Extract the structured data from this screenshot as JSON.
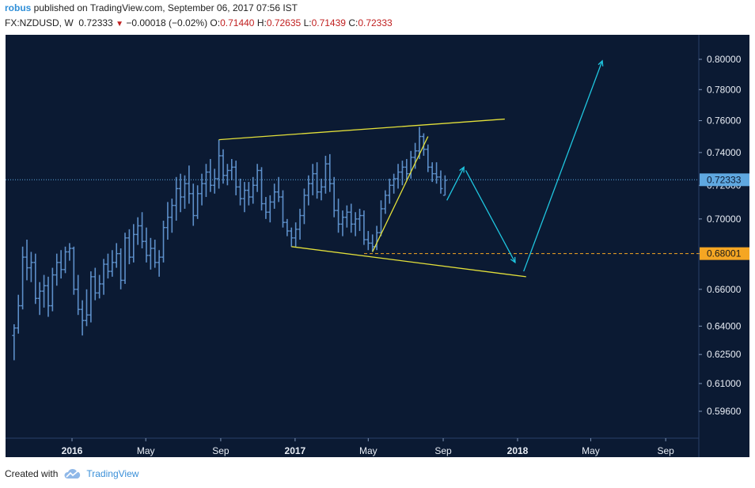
{
  "header": {
    "user": "robus",
    "published": " published on TradingView.com, September 06, 2017 07:56 IST",
    "symbol": "FX:NZDUSD, W",
    "last": "0.72333",
    "change": "−0.00018 (−0.02%)",
    "o_label": "O:",
    "o": "0.71440",
    "h_label": "H:",
    "h": "0.72635",
    "l_label": "L:",
    "l": "0.71439",
    "c_label": "C:",
    "c": "0.72333"
  },
  "footer": {
    "created_with": "Created with",
    "brand": "TradingView"
  },
  "colors": {
    "background": "#0b1a33",
    "panel": "#0c1a32",
    "candle": "#5d8fc9",
    "trendline": "#e3e03a",
    "arrow": "#1fc6e0",
    "price_tag": "#5fa8e0",
    "level_tag": "#f5a623",
    "grid": "#14284a"
  },
  "chart_data": {
    "type": "ohlc",
    "symbol": "FX:NZDUSD",
    "interval": "W",
    "y_axis_ticks": [
      "0.80000",
      "0.78000",
      "0.76000",
      "0.74000",
      "0.72000",
      "0.70000",
      "0.68000",
      "0.66000",
      "0.64000",
      "0.62500",
      "0.61000",
      "0.59600"
    ],
    "x_axis_ticks": [
      {
        "label": "2016",
        "date": "2016-01-01",
        "bold": true
      },
      {
        "label": "May",
        "date": "2016-05-01",
        "bold": false
      },
      {
        "label": "Sep",
        "date": "2016-09-01",
        "bold": false
      },
      {
        "label": "2017",
        "date": "2017-01-01",
        "bold": true
      },
      {
        "label": "May",
        "date": "2017-05-01",
        "bold": false
      },
      {
        "label": "Sep",
        "date": "2017-09-01",
        "bold": false
      },
      {
        "label": "2018",
        "date": "2018-01-01",
        "bold": true
      },
      {
        "label": "May",
        "date": "2018-05-01",
        "bold": false
      },
      {
        "label": "Sep",
        "date": "2018-09-01",
        "bold": false
      }
    ],
    "scale": "log",
    "last_price": "0.72333",
    "level_price": "0.68001",
    "bars": [
      {
        "date": "2015-09-28",
        "o": 0.635,
        "h": 0.641,
        "l": 0.622,
        "c": 0.639
      },
      {
        "date": "2015-10-05",
        "o": 0.639,
        "h": 0.657,
        "l": 0.636,
        "c": 0.651
      },
      {
        "date": "2015-10-12",
        "o": 0.651,
        "h": 0.684,
        "l": 0.649,
        "c": 0.678
      },
      {
        "date": "2015-10-19",
        "o": 0.678,
        "h": 0.688,
        "l": 0.665,
        "c": 0.672
      },
      {
        "date": "2015-10-26",
        "o": 0.672,
        "h": 0.681,
        "l": 0.664,
        "c": 0.675
      },
      {
        "date": "2015-11-02",
        "o": 0.675,
        "h": 0.68,
        "l": 0.652,
        "c": 0.655
      },
      {
        "date": "2015-11-09",
        "o": 0.655,
        "h": 0.664,
        "l": 0.646,
        "c": 0.659
      },
      {
        "date": "2015-11-16",
        "o": 0.659,
        "h": 0.668,
        "l": 0.65,
        "c": 0.662
      },
      {
        "date": "2015-11-23",
        "o": 0.662,
        "h": 0.667,
        "l": 0.645,
        "c": 0.651
      },
      {
        "date": "2015-11-30",
        "o": 0.651,
        "h": 0.672,
        "l": 0.648,
        "c": 0.668
      },
      {
        "date": "2015-12-07",
        "o": 0.668,
        "h": 0.68,
        "l": 0.662,
        "c": 0.675
      },
      {
        "date": "2015-12-14",
        "o": 0.675,
        "h": 0.682,
        "l": 0.666,
        "c": 0.671
      },
      {
        "date": "2015-12-21",
        "o": 0.671,
        "h": 0.684,
        "l": 0.669,
        "c": 0.681
      },
      {
        "date": "2015-12-28",
        "o": 0.681,
        "h": 0.686,
        "l": 0.676,
        "c": 0.683
      },
      {
        "date": "2016-01-04",
        "o": 0.683,
        "h": 0.684,
        "l": 0.657,
        "c": 0.66
      },
      {
        "date": "2016-01-11",
        "o": 0.66,
        "h": 0.668,
        "l": 0.646,
        "c": 0.649
      },
      {
        "date": "2016-01-18",
        "o": 0.649,
        "h": 0.654,
        "l": 0.635,
        "c": 0.643
      },
      {
        "date": "2016-01-25",
        "o": 0.643,
        "h": 0.66,
        "l": 0.64,
        "c": 0.646
      },
      {
        "date": "2016-02-01",
        "o": 0.646,
        "h": 0.67,
        "l": 0.642,
        "c": 0.667
      },
      {
        "date": "2016-02-08",
        "o": 0.667,
        "h": 0.672,
        "l": 0.654,
        "c": 0.658
      },
      {
        "date": "2016-02-15",
        "o": 0.658,
        "h": 0.668,
        "l": 0.655,
        "c": 0.663
      },
      {
        "date": "2016-02-22",
        "o": 0.663,
        "h": 0.677,
        "l": 0.657,
        "c": 0.674
      },
      {
        "date": "2016-02-29",
        "o": 0.674,
        "h": 0.68,
        "l": 0.666,
        "c": 0.67
      },
      {
        "date": "2016-03-07",
        "o": 0.67,
        "h": 0.682,
        "l": 0.667,
        "c": 0.675
      },
      {
        "date": "2016-03-14",
        "o": 0.675,
        "h": 0.686,
        "l": 0.672,
        "c": 0.68
      },
      {
        "date": "2016-03-21",
        "o": 0.68,
        "h": 0.683,
        "l": 0.66,
        "c": 0.665
      },
      {
        "date": "2016-03-28",
        "o": 0.665,
        "h": 0.692,
        "l": 0.663,
        "c": 0.689
      },
      {
        "date": "2016-04-04",
        "o": 0.689,
        "h": 0.694,
        "l": 0.674,
        "c": 0.678
      },
      {
        "date": "2016-04-11",
        "o": 0.678,
        "h": 0.697,
        "l": 0.675,
        "c": 0.691
      },
      {
        "date": "2016-04-18",
        "o": 0.691,
        "h": 0.701,
        "l": 0.685,
        "c": 0.696
      },
      {
        "date": "2016-04-25",
        "o": 0.696,
        "h": 0.704,
        "l": 0.683,
        "c": 0.687
      },
      {
        "date": "2016-05-02",
        "o": 0.687,
        "h": 0.695,
        "l": 0.675,
        "c": 0.679
      },
      {
        "date": "2016-05-09",
        "o": 0.679,
        "h": 0.689,
        "l": 0.671,
        "c": 0.683
      },
      {
        "date": "2016-05-16",
        "o": 0.683,
        "h": 0.688,
        "l": 0.672,
        "c": 0.675
      },
      {
        "date": "2016-05-23",
        "o": 0.675,
        "h": 0.682,
        "l": 0.667,
        "c": 0.678
      },
      {
        "date": "2016-05-30",
        "o": 0.678,
        "h": 0.699,
        "l": 0.675,
        "c": 0.695
      },
      {
        "date": "2016-06-06",
        "o": 0.695,
        "h": 0.71,
        "l": 0.688,
        "c": 0.701
      },
      {
        "date": "2016-06-13",
        "o": 0.701,
        "h": 0.712,
        "l": 0.692,
        "c": 0.708
      },
      {
        "date": "2016-06-20",
        "o": 0.708,
        "h": 0.725,
        "l": 0.699,
        "c": 0.718
      },
      {
        "date": "2016-06-27",
        "o": 0.718,
        "h": 0.727,
        "l": 0.704,
        "c": 0.713
      },
      {
        "date": "2016-07-04",
        "o": 0.713,
        "h": 0.726,
        "l": 0.706,
        "c": 0.721
      },
      {
        "date": "2016-07-11",
        "o": 0.721,
        "h": 0.732,
        "l": 0.709,
        "c": 0.715
      },
      {
        "date": "2016-07-18",
        "o": 0.715,
        "h": 0.721,
        "l": 0.696,
        "c": 0.702
      },
      {
        "date": "2016-07-25",
        "o": 0.702,
        "h": 0.72,
        "l": 0.7,
        "c": 0.715
      },
      {
        "date": "2016-08-01",
        "o": 0.715,
        "h": 0.727,
        "l": 0.708,
        "c": 0.721
      },
      {
        "date": "2016-08-08",
        "o": 0.721,
        "h": 0.733,
        "l": 0.713,
        "c": 0.728
      },
      {
        "date": "2016-08-15",
        "o": 0.728,
        "h": 0.736,
        "l": 0.716,
        "c": 0.72
      },
      {
        "date": "2016-08-22",
        "o": 0.72,
        "h": 0.73,
        "l": 0.715,
        "c": 0.724
      },
      {
        "date": "2016-08-29",
        "o": 0.724,
        "h": 0.748,
        "l": 0.718,
        "c": 0.738
      },
      {
        "date": "2016-09-05",
        "o": 0.738,
        "h": 0.742,
        "l": 0.721,
        "c": 0.726
      },
      {
        "date": "2016-09-12",
        "o": 0.726,
        "h": 0.733,
        "l": 0.72,
        "c": 0.729
      },
      {
        "date": "2016-09-19",
        "o": 0.729,
        "h": 0.736,
        "l": 0.723,
        "c": 0.731
      },
      {
        "date": "2016-09-26",
        "o": 0.731,
        "h": 0.735,
        "l": 0.714,
        "c": 0.719
      },
      {
        "date": "2016-10-03",
        "o": 0.719,
        "h": 0.724,
        "l": 0.708,
        "c": 0.712
      },
      {
        "date": "2016-10-10",
        "o": 0.712,
        "h": 0.722,
        "l": 0.704,
        "c": 0.717
      },
      {
        "date": "2016-10-17",
        "o": 0.717,
        "h": 0.722,
        "l": 0.708,
        "c": 0.713
      },
      {
        "date": "2016-10-24",
        "o": 0.713,
        "h": 0.725,
        "l": 0.709,
        "c": 0.72
      },
      {
        "date": "2016-10-31",
        "o": 0.72,
        "h": 0.733,
        "l": 0.716,
        "c": 0.729
      },
      {
        "date": "2016-11-07",
        "o": 0.729,
        "h": 0.731,
        "l": 0.705,
        "c": 0.709
      },
      {
        "date": "2016-11-14",
        "o": 0.709,
        "h": 0.713,
        "l": 0.7,
        "c": 0.704
      },
      {
        "date": "2016-11-21",
        "o": 0.704,
        "h": 0.714,
        "l": 0.698,
        "c": 0.71
      },
      {
        "date": "2016-11-28",
        "o": 0.71,
        "h": 0.721,
        "l": 0.706,
        "c": 0.716
      },
      {
        "date": "2016-12-05",
        "o": 0.716,
        "h": 0.725,
        "l": 0.71,
        "c": 0.713
      },
      {
        "date": "2016-12-12",
        "o": 0.713,
        "h": 0.717,
        "l": 0.695,
        "c": 0.698
      },
      {
        "date": "2016-12-19",
        "o": 0.698,
        "h": 0.7,
        "l": 0.69,
        "c": 0.693
      },
      {
        "date": "2016-12-26",
        "o": 0.693,
        "h": 0.695,
        "l": 0.684,
        "c": 0.689
      },
      {
        "date": "2017-01-02",
        "o": 0.689,
        "h": 0.698,
        "l": 0.684,
        "c": 0.694
      },
      {
        "date": "2017-01-09",
        "o": 0.694,
        "h": 0.706,
        "l": 0.688,
        "c": 0.702
      },
      {
        "date": "2017-01-16",
        "o": 0.702,
        "h": 0.718,
        "l": 0.697,
        "c": 0.714
      },
      {
        "date": "2017-01-23",
        "o": 0.714,
        "h": 0.726,
        "l": 0.708,
        "c": 0.721
      },
      {
        "date": "2017-01-30",
        "o": 0.721,
        "h": 0.733,
        "l": 0.714,
        "c": 0.727
      },
      {
        "date": "2017-02-06",
        "o": 0.727,
        "h": 0.734,
        "l": 0.712,
        "c": 0.716
      },
      {
        "date": "2017-02-13",
        "o": 0.716,
        "h": 0.724,
        "l": 0.711,
        "c": 0.719
      },
      {
        "date": "2017-02-20",
        "o": 0.719,
        "h": 0.738,
        "l": 0.715,
        "c": 0.733
      },
      {
        "date": "2017-02-27",
        "o": 0.733,
        "h": 0.739,
        "l": 0.716,
        "c": 0.721
      },
      {
        "date": "2017-03-06",
        "o": 0.721,
        "h": 0.725,
        "l": 0.701,
        "c": 0.705
      },
      {
        "date": "2017-03-13",
        "o": 0.705,
        "h": 0.712,
        "l": 0.692,
        "c": 0.697
      },
      {
        "date": "2017-03-20",
        "o": 0.697,
        "h": 0.705,
        "l": 0.69,
        "c": 0.701
      },
      {
        "date": "2017-03-27",
        "o": 0.701,
        "h": 0.708,
        "l": 0.695,
        "c": 0.704
      },
      {
        "date": "2017-04-03",
        "o": 0.704,
        "h": 0.709,
        "l": 0.692,
        "c": 0.697
      },
      {
        "date": "2017-04-10",
        "o": 0.697,
        "h": 0.704,
        "l": 0.69,
        "c": 0.7
      },
      {
        "date": "2017-04-17",
        "o": 0.7,
        "h": 0.706,
        "l": 0.693,
        "c": 0.702
      },
      {
        "date": "2017-04-24",
        "o": 0.702,
        "h": 0.705,
        "l": 0.685,
        "c": 0.688
      },
      {
        "date": "2017-05-01",
        "o": 0.688,
        "h": 0.693,
        "l": 0.682,
        "c": 0.686
      },
      {
        "date": "2017-05-08",
        "o": 0.686,
        "h": 0.691,
        "l": 0.681,
        "c": 0.684
      },
      {
        "date": "2017-05-15",
        "o": 0.684,
        "h": 0.696,
        "l": 0.682,
        "c": 0.692
      },
      {
        "date": "2017-05-22",
        "o": 0.692,
        "h": 0.711,
        "l": 0.69,
        "c": 0.706
      },
      {
        "date": "2017-05-29",
        "o": 0.706,
        "h": 0.717,
        "l": 0.703,
        "c": 0.714
      },
      {
        "date": "2017-06-05",
        "o": 0.714,
        "h": 0.724,
        "l": 0.709,
        "c": 0.72
      },
      {
        "date": "2017-06-12",
        "o": 0.72,
        "h": 0.727,
        "l": 0.715,
        "c": 0.724
      },
      {
        "date": "2017-06-19",
        "o": 0.724,
        "h": 0.733,
        "l": 0.718,
        "c": 0.728
      },
      {
        "date": "2017-06-26",
        "o": 0.728,
        "h": 0.735,
        "l": 0.72,
        "c": 0.731
      },
      {
        "date": "2017-07-03",
        "o": 0.731,
        "h": 0.736,
        "l": 0.723,
        "c": 0.727
      },
      {
        "date": "2017-07-10",
        "o": 0.727,
        "h": 0.741,
        "l": 0.724,
        "c": 0.737
      },
      {
        "date": "2017-07-17",
        "o": 0.737,
        "h": 0.746,
        "l": 0.73,
        "c": 0.741
      },
      {
        "date": "2017-07-24",
        "o": 0.741,
        "h": 0.756,
        "l": 0.736,
        "c": 0.75
      },
      {
        "date": "2017-07-31",
        "o": 0.75,
        "h": 0.752,
        "l": 0.738,
        "c": 0.742
      },
      {
        "date": "2017-08-07",
        "o": 0.742,
        "h": 0.745,
        "l": 0.728,
        "c": 0.731
      },
      {
        "date": "2017-08-14",
        "o": 0.731,
        "h": 0.734,
        "l": 0.722,
        "c": 0.727
      },
      {
        "date": "2017-08-21",
        "o": 0.727,
        "h": 0.734,
        "l": 0.721,
        "c": 0.725
      },
      {
        "date": "2017-08-28",
        "o": 0.725,
        "h": 0.729,
        "l": 0.715,
        "c": 0.718
      },
      {
        "date": "2017-09-04",
        "o": 0.714,
        "h": 0.726,
        "l": 0.714,
        "c": 0.723
      }
    ],
    "trendlines": [
      {
        "kind": "upper-channel",
        "from": {
          "date": "2016-08-29",
          "price": 0.748
        },
        "to": {
          "date": "2017-12-11",
          "price": 0.761
        }
      },
      {
        "kind": "lower-channel",
        "from": {
          "date": "2016-12-26",
          "price": 0.684
        },
        "to": {
          "date": "2018-01-15",
          "price": 0.667
        }
      },
      {
        "kind": "rising-support",
        "from": {
          "date": "2017-05-08",
          "price": 0.681
        },
        "to": {
          "date": "2017-08-07",
          "price": 0.75
        }
      }
    ],
    "projection_arrows": [
      {
        "from": {
          "date": "2017-09-07",
          "price": 0.711
        },
        "to": {
          "date": "2017-10-05",
          "price": 0.731
        }
      },
      {
        "from": {
          "date": "2017-10-08",
          "price": 0.729
        },
        "to": {
          "date": "2017-12-28",
          "price": 0.675
        }
      },
      {
        "from": {
          "date": "2018-01-11",
          "price": 0.67
        },
        "to": {
          "date": "2018-05-20",
          "price": 0.799
        }
      }
    ]
  }
}
